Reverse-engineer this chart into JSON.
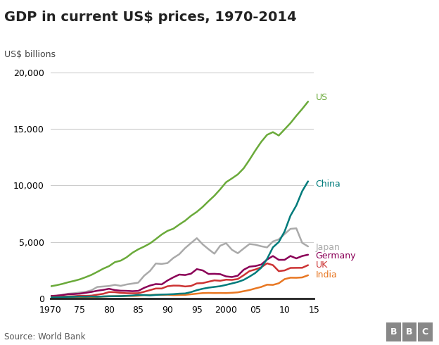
{
  "title": "GDP in current US$ prices, 1970-2014",
  "ylabel": "US$ billions",
  "source": "Source: World Bank",
  "bbc_logo": "BBC",
  "years": [
    1970,
    1971,
    1972,
    1973,
    1974,
    1975,
    1976,
    1977,
    1978,
    1979,
    1980,
    1981,
    1982,
    1983,
    1984,
    1985,
    1986,
    1987,
    1988,
    1989,
    1990,
    1991,
    1992,
    1993,
    1994,
    1995,
    1996,
    1997,
    1998,
    1999,
    2000,
    2001,
    2002,
    2003,
    2004,
    2005,
    2006,
    2007,
    2008,
    2009,
    2010,
    2011,
    2012,
    2013,
    2014
  ],
  "US": [
    1073,
    1165,
    1282,
    1428,
    1549,
    1689,
    1878,
    2086,
    2352,
    2631,
    2858,
    3211,
    3345,
    3638,
    4041,
    4347,
    4590,
    4870,
    5253,
    5658,
    5980,
    6174,
    6539,
    6879,
    7309,
    7664,
    8100,
    8608,
    9089,
    9661,
    10285,
    10622,
    10978,
    11511,
    12275,
    13094,
    13856,
    14478,
    14719,
    14419,
    14964,
    15518,
    16163,
    16768,
    17419
  ],
  "China": [
    93,
    99,
    111,
    138,
    144,
    163,
    152,
    172,
    148,
    176,
    190,
    194,
    203,
    228,
    257,
    307,
    299,
    270,
    309,
    343,
    356,
    379,
    422,
    440,
    559,
    728,
    856,
    952,
    1019,
    1083,
    1198,
    1325,
    1454,
    1641,
    1931,
    2257,
    2713,
    3494,
    4522,
    4990,
    5930,
    7322,
    8229,
    9490,
    10360
  ],
  "Japan": [
    212,
    237,
    313,
    414,
    460,
    521,
    580,
    720,
    1014,
    1057,
    1100,
    1205,
    1116,
    1237,
    1316,
    1399,
    2009,
    2432,
    3091,
    3053,
    3132,
    3583,
    3912,
    4454,
    4900,
    5333,
    4787,
    4358,
    3959,
    4667,
    4888,
    4304,
    4001,
    4415,
    4816,
    4755,
    4617,
    4516,
    5038,
    5231,
    5700,
    6157,
    6203,
    4920,
    4602
  ],
  "Germany": [
    215,
    243,
    298,
    373,
    385,
    424,
    496,
    577,
    681,
    755,
    853,
    738,
    683,
    671,
    641,
    669,
    937,
    1140,
    1272,
    1244,
    1588,
    1869,
    2111,
    2071,
    2187,
    2592,
    2481,
    2166,
    2178,
    2147,
    1950,
    1894,
    2013,
    2533,
    2810,
    2866,
    2997,
    3439,
    3752,
    3415,
    3417,
    3757,
    3543,
    3753,
    3868
  ],
  "UK": [
    131,
    146,
    166,
    182,
    197,
    237,
    229,
    248,
    335,
    407,
    564,
    554,
    493,
    462,
    456,
    463,
    589,
    734,
    879,
    878,
    1079,
    1135,
    1130,
    1059,
    1103,
    1330,
    1357,
    1479,
    1599,
    1564,
    1658,
    1640,
    1716,
    2050,
    2420,
    2561,
    2756,
    3105,
    2946,
    2412,
    2478,
    2701,
    2708,
    2712,
    2945
  ],
  "India": [
    63,
    70,
    75,
    88,
    100,
    105,
    111,
    128,
    149,
    169,
    189,
    200,
    204,
    222,
    215,
    236,
    298,
    303,
    327,
    312,
    330,
    294,
    307,
    317,
    367,
    421,
    474,
    488,
    477,
    483,
    476,
    500,
    537,
    640,
    741,
    886,
    1016,
    1216,
    1197,
    1341,
    1708,
    1835,
    1827,
    1858,
    2049
  ],
  "colors": {
    "US": "#6aaa3a",
    "China": "#007b7b",
    "Japan": "#aaaaaa",
    "Germany": "#8b0057",
    "UK": "#cc3333",
    "India": "#e87722"
  },
  "ylim": [
    0,
    20000
  ],
  "yticks": [
    0,
    5000,
    10000,
    15000,
    20000
  ],
  "xtick_labels": [
    "1970",
    "75",
    "80",
    "85",
    "90",
    "95",
    "2000",
    "05",
    "10",
    "15"
  ],
  "xtick_positions": [
    1970,
    1975,
    1980,
    1985,
    1990,
    1995,
    2000,
    2005,
    2010,
    2015
  ],
  "background_color": "#ffffff",
  "grid_color": "#cccccc",
  "title_fontsize": 14,
  "label_fontsize": 9,
  "line_width": 1.8,
  "label_positions": {
    "US": [
      17800,
      "center"
    ],
    "China": [
      10100,
      "center"
    ],
    "Japan": [
      4500,
      "center"
    ],
    "Germany": [
      3750,
      "center"
    ],
    "UK": [
      2950,
      "center"
    ],
    "India": [
      2100,
      "center"
    ]
  }
}
